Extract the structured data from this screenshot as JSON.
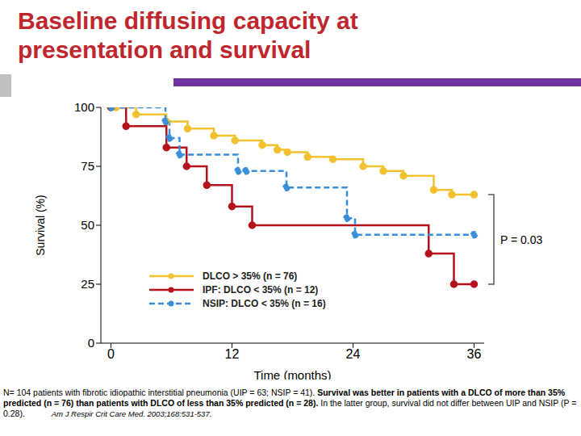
{
  "chart_data": {
    "type": "line",
    "title": "Baseline diffusing capacity at presentation and survival",
    "y_label": "Survival (%)",
    "x_label": "Time (months)",
    "xlim": [
      -1,
      37
    ],
    "xticks": [
      0,
      12,
      24,
      36
    ],
    "ylim": [
      0,
      100
    ],
    "yticks": [
      0,
      25,
      50,
      75,
      100
    ],
    "legend": "lower left",
    "annotation": "P = 0.03",
    "series": [
      {
        "name": "DLCO > 35% (n = 76)",
        "color": "#f2c12e",
        "marker": "circle",
        "line_style": "solid",
        "x": [
          0,
          0.5,
          2.5,
          5.5,
          7.6,
          10.2,
          12.3,
          15,
          16.5,
          17.5,
          19.5,
          22,
          25,
          27,
          29,
          32,
          33.8,
          36
        ],
        "values": [
          100,
          100,
          97,
          94,
          91,
          88,
          86,
          84,
          82,
          81,
          79,
          78,
          75,
          73,
          71,
          65,
          63,
          63
        ]
      },
      {
        "name": "IPF: DLCO < 35% (n = 12)",
        "color": "#b5121b",
        "marker": "circle",
        "line_style": "solid",
        "x": [
          0,
          1.5,
          5.5,
          7.5,
          9.5,
          12,
          14,
          31.5,
          34,
          36
        ],
        "values": [
          100,
          92,
          83,
          75,
          67,
          58,
          50,
          38,
          25,
          25
        ]
      },
      {
        "name": "NSIP: DLCO < 35% (n = 16)",
        "color": "#3a8fd9",
        "marker": "circle",
        "line_style": "dashed",
        "x": [
          0,
          5.4,
          5.8,
          6.8,
          12.6,
          13.4,
          17.4,
          23.4,
          24.2,
          36
        ],
        "values": [
          100,
          94,
          87,
          80,
          73,
          73,
          66,
          53,
          46,
          46
        ]
      }
    ],
    "footnote": [
      "N= 104 patients with fibrotic idiopathic interstitial pneumonia (UIP = 63; NSIP = 41).",
      "Survival was better in patients with a DLCO of more than 35% predicted (n = 76) than patients with DLCO of less than 35% predicted (n = 28).",
      "In the latter group, survival did not differ between UIP and NSIP (P = 0.28)."
    ],
    "citation": "Am J Respir Crit Care Med. 2003;168:531-537."
  }
}
